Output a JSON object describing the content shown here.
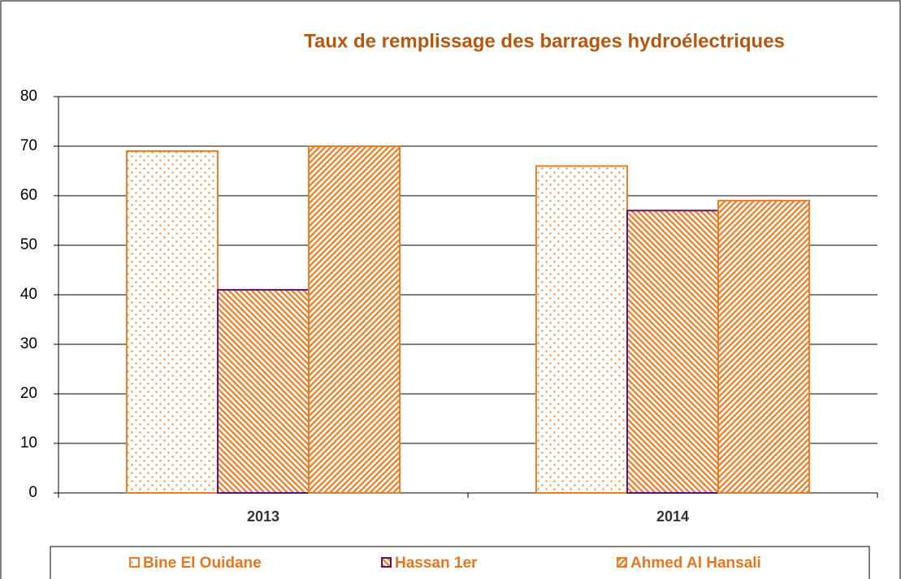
{
  "chart_data": {
    "type": "bar",
    "title": "Taux de remplissage des barrages hydroélectriques",
    "categories": [
      "2013",
      "2014"
    ],
    "series": [
      {
        "name": "Bine El Ouidane",
        "color": "#ee7d22",
        "edgecolor": "#ee7d22",
        "values": [
          69,
          66
        ]
      },
      {
        "name": "Hassan 1er",
        "color": "#ee7d22",
        "edgecolor": "#5e1273",
        "values": [
          41,
          57
        ]
      },
      {
        "name": "Ahmed Al Hansali",
        "color": "#ee7d22",
        "edgecolor": "#ee7d22",
        "values": [
          70,
          59
        ]
      }
    ],
    "ylim": [
      0,
      80
    ],
    "yticks": [
      0,
      10,
      20,
      30,
      40,
      50,
      60,
      70,
      80
    ],
    "grid": true,
    "legend": "bottom"
  }
}
